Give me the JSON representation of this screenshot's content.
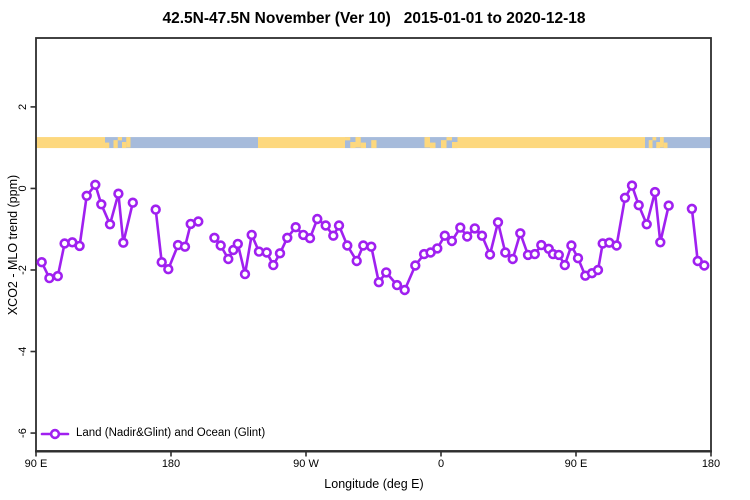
{
  "title": "42.5N-47.5N November (Ver 10)   2015-01-01 to 2020-12-18",
  "axes": {
    "x": {
      "label": "Longitude (deg E)",
      "ticks": [
        {
          "deg": 90,
          "label": "90 E"
        },
        {
          "deg": 180,
          "label": "180"
        },
        {
          "deg": 270,
          "label": "90 W"
        },
        {
          "deg": 360,
          "label": "0"
        },
        {
          "deg": 450,
          "label": "90 E"
        },
        {
          "deg": 540,
          "label": "180"
        }
      ]
    },
    "y": {
      "label": "XCO2 - MLO trend (ppm)",
      "ticks": [
        {
          "v": 2,
          "label": "2"
        },
        {
          "v": 0,
          "label": "0"
        },
        {
          "v": -2,
          "label": "-2"
        },
        {
          "v": -4,
          "label": "-4"
        },
        {
          "v": -6,
          "label": "-6"
        }
      ]
    }
  },
  "legend": {
    "label": "Land (Nadir&Glint) and Ocean (Glint)"
  },
  "colors": {
    "series": "#A020F0",
    "marker_fill": "#ffffff",
    "land": "#FDD87E",
    "ocean": "#A6BBDB",
    "frame": "#2e2e2e",
    "text": "#000000"
  },
  "surface_band": {
    "value_from": 0.99,
    "value_to": 1.26,
    "segments": [
      {
        "from": 90,
        "to": 136,
        "type": "land"
      },
      {
        "from": 136,
        "to": 153,
        "type": "coast"
      },
      {
        "from": 153,
        "to": 238,
        "type": "ocean"
      },
      {
        "from": 238,
        "to": 296,
        "type": "land"
      },
      {
        "from": 296,
        "to": 317,
        "type": "coast"
      },
      {
        "from": 317,
        "to": 349,
        "type": "ocean"
      },
      {
        "from": 349,
        "to": 371,
        "type": "coast"
      },
      {
        "from": 371,
        "to": 496,
        "type": "land"
      },
      {
        "from": 496,
        "to": 511,
        "type": "coast"
      },
      {
        "from": 511,
        "to": 540,
        "type": "ocean"
      }
    ]
  },
  "chart_data": {
    "type": "line",
    "marker": "open-circle",
    "title": "42.5N-47.5N November (Ver 10)   2015-01-01 to 2020-12-18",
    "xlabel": "Longitude (deg E)",
    "ylabel": "XCO2 - MLO trend (ppm)",
    "xlim": [
      90,
      540
    ],
    "ylim": [
      -6.44,
      3.69
    ],
    "grid": false,
    "legend_position": "bottom-left",
    "series_name": "Land (Nadir&Glint) and Ocean (Glint)",
    "series_segments": [
      [
        [
          93.8,
          -1.81
        ],
        [
          98.9,
          -2.2
        ],
        [
          104.5,
          -2.15
        ],
        [
          109.1,
          -1.35
        ],
        [
          114.2,
          -1.32
        ],
        [
          119.1,
          -1.41
        ],
        [
          123.8,
          -0.18
        ],
        [
          129.5,
          0.09
        ],
        [
          133.5,
          -0.39
        ],
        [
          139.3,
          -0.88
        ],
        [
          144.9,
          -0.13
        ],
        [
          148.2,
          -1.33
        ],
        [
          154.5,
          -0.35
        ]
      ],
      [
        [
          169.8,
          -0.52
        ],
        [
          173.8,
          -1.81
        ],
        [
          178.2,
          -1.98
        ],
        [
          184.7,
          -1.39
        ],
        [
          189.3,
          -1.43
        ],
        [
          193.1,
          -0.87
        ],
        [
          198.2,
          -0.81
        ]
      ],
      [
        [
          208.9,
          -1.21
        ],
        [
          213.1,
          -1.4
        ],
        [
          218.2,
          -1.73
        ],
        [
          221.5,
          -1.51
        ],
        [
          224.5,
          -1.36
        ],
        [
          229.3,
          -2.1
        ],
        [
          233.8,
          -1.14
        ],
        [
          238.7,
          -1.55
        ],
        [
          243.8,
          -1.57
        ],
        [
          248.2,
          -1.88
        ],
        [
          252.7,
          -1.59
        ],
        [
          257.5,
          -1.21
        ],
        [
          263.1,
          -0.95
        ],
        [
          268.2,
          -1.14
        ],
        [
          272.7,
          -1.22
        ],
        [
          277.5,
          -0.75
        ],
        [
          283.1,
          -0.91
        ],
        [
          288.2,
          -1.16
        ],
        [
          292.0,
          -0.91
        ],
        [
          297.5,
          -1.4
        ],
        [
          303.8,
          -1.78
        ],
        [
          308.2,
          -1.4
        ],
        [
          313.5,
          -1.43
        ],
        [
          318.5,
          -2.3
        ],
        [
          323.5,
          -2.06
        ],
        [
          330.7,
          -2.37
        ],
        [
          335.8,
          -2.49
        ],
        [
          342.9,
          -1.89
        ],
        [
          348.7,
          -1.61
        ],
        [
          353.1,
          -1.57
        ],
        [
          357.5,
          -1.47
        ],
        [
          362.5,
          -1.16
        ],
        [
          367.3,
          -1.29
        ],
        [
          372.9,
          -0.96
        ],
        [
          377.5,
          -1.18
        ],
        [
          382.5,
          -0.98
        ],
        [
          387.3,
          -1.16
        ],
        [
          392.7,
          -1.62
        ],
        [
          398.0,
          -0.83
        ],
        [
          402.9,
          -1.57
        ],
        [
          407.8,
          -1.73
        ],
        [
          412.9,
          -1.1
        ],
        [
          418.0,
          -1.63
        ],
        [
          422.5,
          -1.61
        ],
        [
          426.9,
          -1.39
        ],
        [
          431.8,
          -1.48
        ],
        [
          434.7,
          -1.61
        ],
        [
          438.5,
          -1.63
        ],
        [
          442.5,
          -1.88
        ],
        [
          446.9,
          -1.4
        ],
        [
          451.3,
          -1.71
        ],
        [
          456.2,
          -2.14
        ],
        [
          460.7,
          -2.08
        ],
        [
          464.7,
          -2.0
        ],
        [
          467.8,
          -1.35
        ],
        [
          472.2,
          -1.33
        ],
        [
          477.1,
          -1.4
        ],
        [
          482.7,
          -0.23
        ],
        [
          487.3,
          0.07
        ],
        [
          491.8,
          -0.41
        ],
        [
          497.1,
          -0.88
        ],
        [
          502.7,
          -0.09
        ],
        [
          506.2,
          -1.32
        ],
        [
          511.8,
          -0.42
        ]
      ],
      [
        [
          527.3,
          -0.5
        ],
        [
          531.1,
          -1.78
        ],
        [
          535.5,
          -1.89
        ]
      ]
    ]
  }
}
